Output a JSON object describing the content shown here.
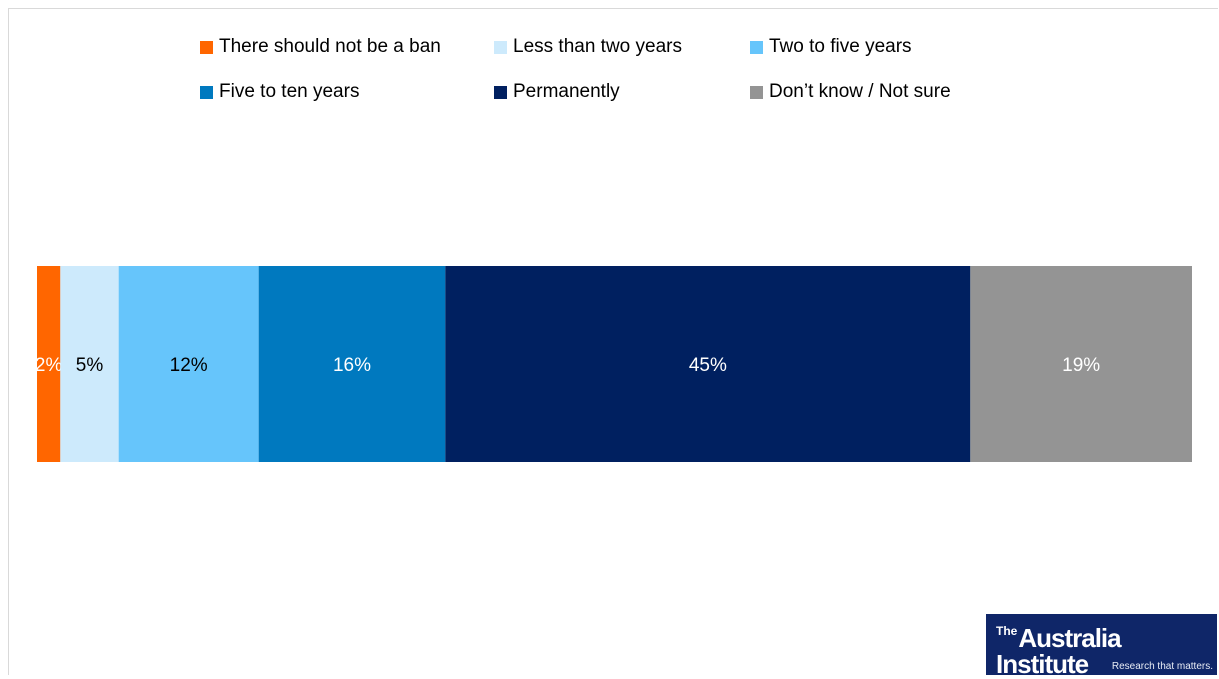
{
  "chart_data": {
    "type": "bar",
    "orientation": "horizontal-stacked",
    "categories": [
      ""
    ],
    "series": [
      {
        "name": "There should not be a ban",
        "values": [
          2
        ],
        "label": "2%",
        "color": "#ff6600",
        "label_color": "#ffffff"
      },
      {
        "name": "Less than two years",
        "values": [
          5
        ],
        "label": "5%",
        "color": "#cdeafc",
        "label_color": "#000000"
      },
      {
        "name": "Two to five years",
        "values": [
          12
        ],
        "label": "12%",
        "color": "#66c5fb",
        "label_color": "#000000"
      },
      {
        "name": "Five to ten years",
        "values": [
          16
        ],
        "label": "16%",
        "color": "#0079bf",
        "label_color": "#ffffff"
      },
      {
        "name": "Permanently",
        "values": [
          45
        ],
        "label": "45%",
        "color": "#002060",
        "label_color": "#ffffff"
      },
      {
        "name": "Don’t know / Not sure",
        "values": [
          19
        ],
        "label": "19%",
        "color": "#949494",
        "label_color": "#ffffff"
      }
    ],
    "xlim": [
      0,
      100
    ],
    "legend_position": "top",
    "grid": false
  },
  "logo": {
    "superscript": "The",
    "name": "Australia Institute",
    "tagline": "Research that matters."
  }
}
